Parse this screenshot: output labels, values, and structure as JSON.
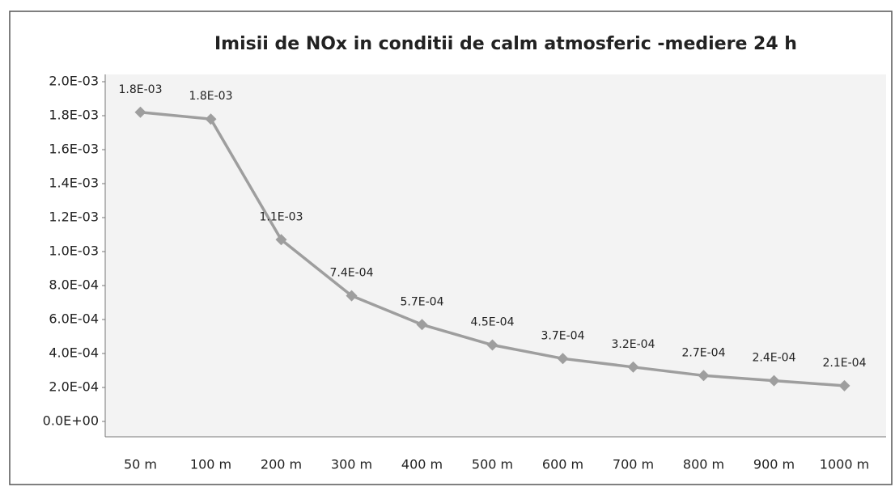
{
  "chart_data": {
    "type": "line",
    "title": "Imisii de NOx in conditii de calm atmosferic -mediere 24 h",
    "categories": [
      "50 m",
      "100 m",
      "200 m",
      "300 m",
      "400 m",
      "500 m",
      "600 m",
      "700 m",
      "800 m",
      "900 m",
      "1000 m"
    ],
    "series": [
      {
        "name": "NOx",
        "color": "#9e9e9e",
        "values": [
          0.00182,
          0.00178,
          0.00107,
          0.00074,
          0.00057,
          0.00045,
          0.00037,
          0.00032,
          0.00027,
          0.00024,
          0.00021
        ],
        "value_labels": [
          "1.8E-03",
          "1.8E-03",
          "1.1E-03",
          "7.4E-04",
          "5.7E-04",
          "4.5E-04",
          "3.7E-04",
          "3.2E-04",
          "2.7E-04",
          "2.4E-04",
          "2.1E-04"
        ]
      }
    ],
    "ylim": [
      0,
      0.002
    ],
    "yticks": [
      {
        "value": 0,
        "label": "0.0E+00"
      },
      {
        "value": 0.0002,
        "label": "2.0E-04"
      },
      {
        "value": 0.0004,
        "label": "4.0E-04"
      },
      {
        "value": 0.0006,
        "label": "6.0E-04"
      },
      {
        "value": 0.0008,
        "label": "8.0E-04"
      },
      {
        "value": 0.001,
        "label": "1.0E-03"
      },
      {
        "value": 0.0012,
        "label": "1.2E-03"
      },
      {
        "value": 0.0014,
        "label": "1.4E-03"
      },
      {
        "value": 0.0016,
        "label": "1.6E-03"
      },
      {
        "value": 0.0018,
        "label": "1.8E-03"
      },
      {
        "value": 0.002,
        "label": "2.0E-03"
      }
    ],
    "grid": false
  }
}
